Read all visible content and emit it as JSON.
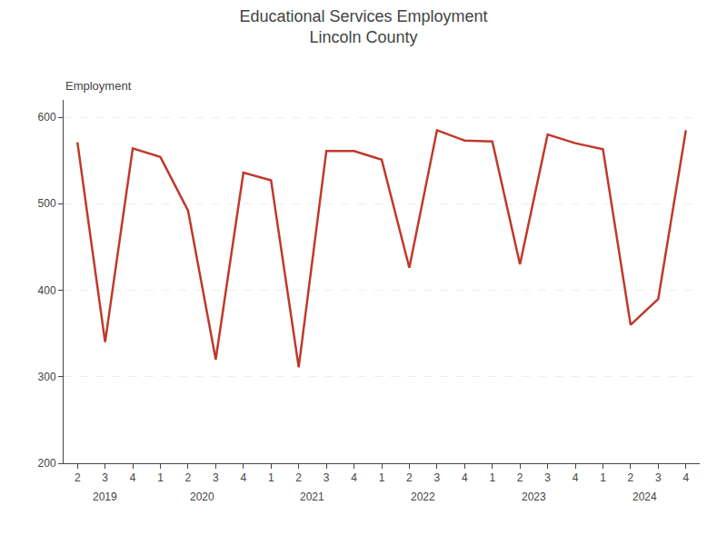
{
  "chart_data": {
    "type": "line",
    "title": "Educational Services Employment\nLincoln County",
    "ylabel": "Employment",
    "categories": [
      "2",
      "3",
      "4",
      "1",
      "2",
      "3",
      "4",
      "1",
      "2",
      "3",
      "4",
      "1",
      "2",
      "3",
      "4",
      "1",
      "2",
      "3",
      "4",
      "1",
      "2",
      "3",
      "4"
    ],
    "years": [
      "2019",
      "2019",
      "2019",
      "2020",
      "2020",
      "2020",
      "2020",
      "2021",
      "2021",
      "2021",
      "2021",
      "2022",
      "2022",
      "2022",
      "2022",
      "2023",
      "2023",
      "2023",
      "2023",
      "2024",
      "2024",
      "2024",
      "2024"
    ],
    "values": [
      571,
      340,
      564,
      554,
      492,
      320,
      536,
      527,
      311,
      561,
      561,
      551,
      426,
      585,
      573,
      572,
      430,
      580,
      570,
      563,
      360,
      390,
      585
    ],
    "color": "#C0392B",
    "ylim": [
      200,
      620
    ],
    "yticks": [
      200,
      300,
      400,
      500,
      600
    ],
    "grid": true
  }
}
